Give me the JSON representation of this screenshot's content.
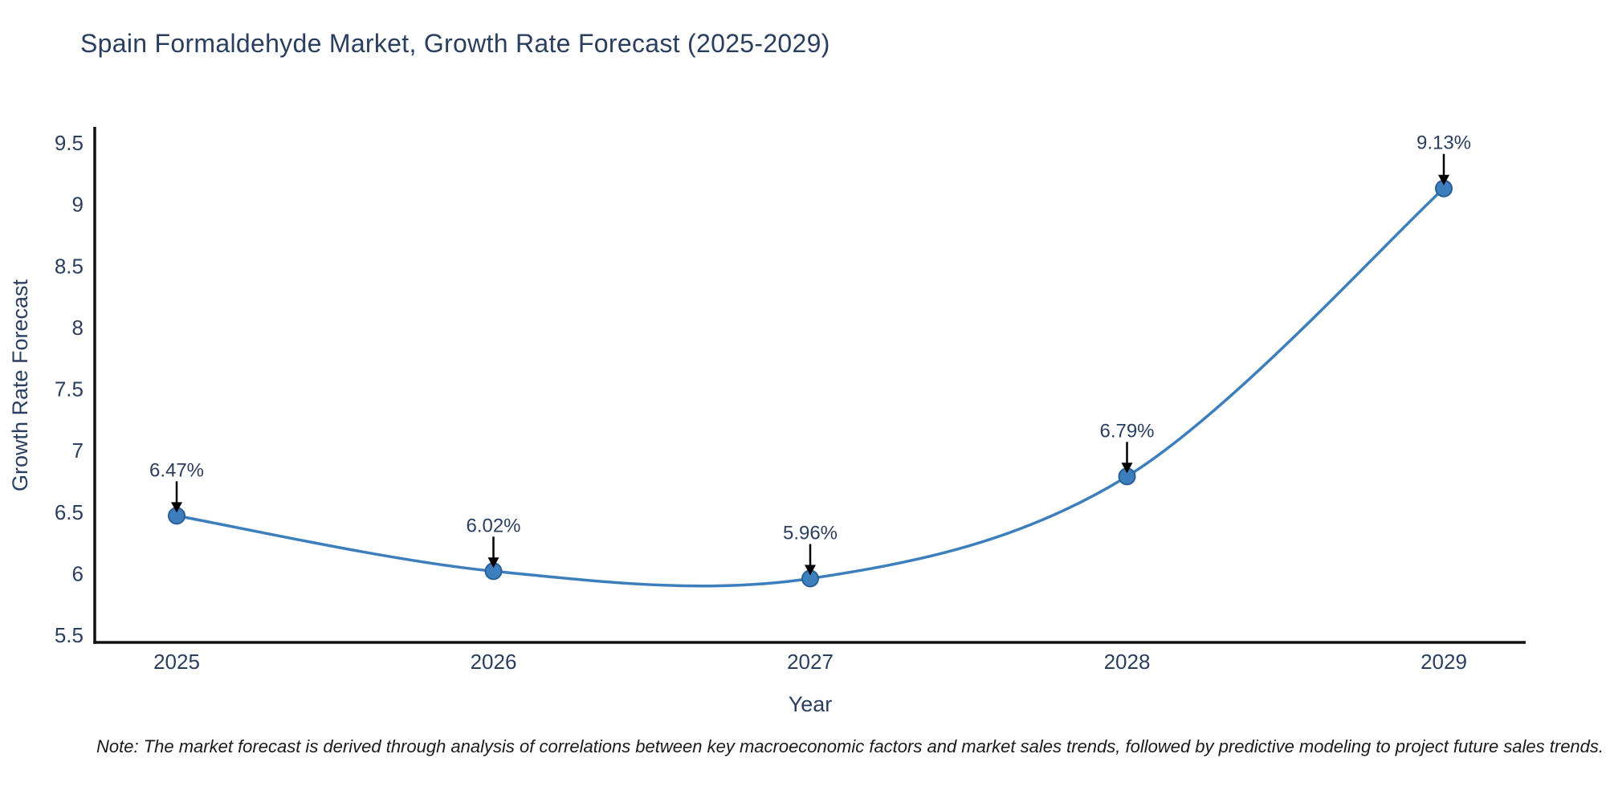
{
  "header": {
    "title": "Spain Formaldehyde Market, Growth Rate Forecast (2025-2029)"
  },
  "chart_data": {
    "type": "line",
    "title": "Spain Formaldehyde Market, Growth Rate Forecast (2025-2029)",
    "x": [
      2025,
      2026,
      2027,
      2028,
      2029
    ],
    "series": [
      {
        "name": "Growth Rate Forecast",
        "values": [
          6.47,
          6.02,
          5.96,
          6.79,
          9.13
        ]
      }
    ],
    "point_labels": [
      "6.47%",
      "6.02%",
      "5.96%",
      "6.79%",
      "9.13%"
    ],
    "xlabel": "Year",
    "ylabel": "Growth Rate Forecast",
    "xticks": [
      "2025",
      "2026",
      "2027",
      "2028",
      "2029"
    ],
    "yticks": [
      5.5,
      6,
      6.5,
      7,
      7.5,
      8,
      8.5,
      9,
      9.5
    ],
    "ylim": [
      5.44,
      9.63
    ],
    "grid": false,
    "legend": false,
    "line_shape": "spline",
    "colors": {
      "line": "#3d7ebd",
      "marker_fill": "#3d7ebd",
      "marker_edge": "#2a6099",
      "axis_line": "#111111",
      "label_text": "#2a3f5f",
      "annotation_arrow": "#000000"
    }
  },
  "footer": {
    "note": "Note: The market forecast is derived through analysis of correlations between key macroeconomic factors and market sales trends, followed by predictive modeling to project future sales trends."
  }
}
